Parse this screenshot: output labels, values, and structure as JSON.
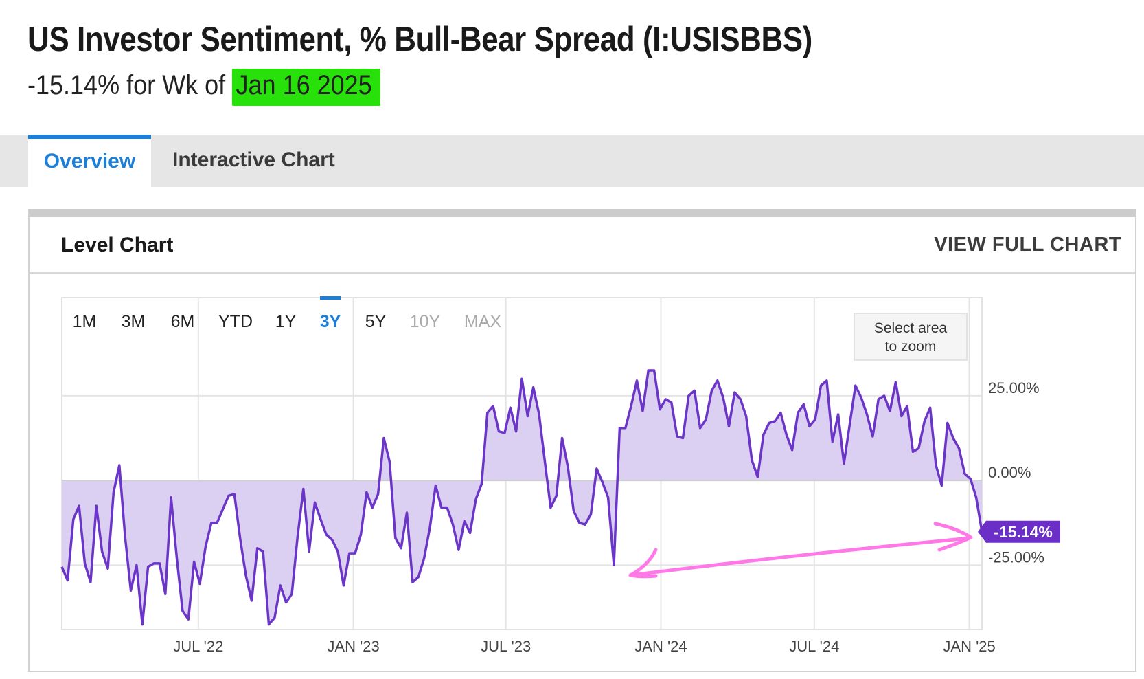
{
  "header": {
    "title": "US Investor Sentiment, % Bull-Bear Spread (I:USISBBS)",
    "subtitle_value": "-15.14% for Wk of",
    "subtitle_date": "Jan 16 2025",
    "highlight_color": "#28e00a"
  },
  "tabs": [
    {
      "label": "Overview",
      "active": true
    },
    {
      "label": "Interactive Chart",
      "active": false
    }
  ],
  "panel": {
    "title": "Level Chart",
    "full_chart_link": "VIEW FULL CHART"
  },
  "ranges": [
    {
      "label": "1M",
      "state": "normal"
    },
    {
      "label": "3M",
      "state": "normal"
    },
    {
      "label": "6M",
      "state": "normal"
    },
    {
      "label": "YTD",
      "state": "normal"
    },
    {
      "label": "1Y",
      "state": "normal"
    },
    {
      "label": "3Y",
      "state": "active"
    },
    {
      "label": "5Y",
      "state": "normal"
    },
    {
      "label": "10Y",
      "state": "disabled"
    },
    {
      "label": "MAX",
      "state": "disabled"
    }
  ],
  "zoom_hint": [
    "Select area",
    "to zoom"
  ],
  "chart_data": {
    "type": "area",
    "x_start": "2022-01-20",
    "x_end": "2025-01-16",
    "x_ticks": [
      {
        "label": "JUL '22",
        "date": "2022-07-01"
      },
      {
        "label": "JAN '23",
        "date": "2023-01-01"
      },
      {
        "label": "JUL '23",
        "date": "2023-07-01"
      },
      {
        "label": "JAN '24",
        "date": "2024-01-01"
      },
      {
        "label": "JUL '24",
        "date": "2024-07-01"
      },
      {
        "label": "JAN '25",
        "date": "2025-01-01"
      }
    ],
    "y_ticks": [
      {
        "label": "25.00%",
        "value": 25
      },
      {
        "label": "0.00%",
        "value": 0
      },
      {
        "label": "-25.00%",
        "value": -25
      }
    ],
    "ylim": [
      -44,
      54
    ],
    "grid": true,
    "line_color": "#6b35c8",
    "fill_color": "#d9cdf0",
    "last_value_label": "-15.14%",
    "weekly_values": [
      -25.5,
      -29.5,
      -11.5,
      -7.5,
      -24.5,
      -30.0,
      -7.5,
      -21.0,
      -26.0,
      -3.5,
      4.5,
      -16.5,
      -32.5,
      -25.0,
      -42.5,
      -25.5,
      -24.5,
      -24.5,
      -33.5,
      -5.0,
      -23.0,
      -38.5,
      -41.0,
      -24.0,
      -30.5,
      -19.5,
      -12.5,
      -12.5,
      -8.5,
      -4.5,
      -4.0,
      -17.0,
      -28.0,
      -35.5,
      -20.0,
      -21.0,
      -42.5,
      -40.5,
      -31.0,
      -36.0,
      -33.5,
      -16.5,
      -2.5,
      -21.0,
      -6.5,
      -11.5,
      -16.0,
      -17.5,
      -21.0,
      -31.0,
      -21.5,
      -21.5,
      -16.0,
      -3.5,
      -8.0,
      -4.0,
      12.5,
      5.5,
      -17.0,
      -20.0,
      -9.5,
      -30.0,
      -28.5,
      -23.0,
      -14.0,
      -1.5,
      -8.0,
      -8.0,
      -13.0,
      -20.5,
      -12.0,
      -15.5,
      -5.5,
      -1.0,
      20.0,
      22.0,
      14.5,
      14.0,
      21.5,
      14.5,
      30.0,
      19.0,
      27.5,
      19.5,
      5.5,
      -8.0,
      -4.5,
      12.5,
      4.0,
      -9.0,
      -12.5,
      -13.0,
      -10.0,
      3.5,
      -0.5,
      -5.0,
      -25.0,
      15.5,
      15.5,
      22.0,
      29.5,
      20.5,
      32.5,
      32.5,
      21.0,
      24.0,
      23.0,
      13.0,
      12.5,
      25.0,
      26.5,
      15.5,
      18.0,
      26.5,
      29.5,
      24.5,
      16.0,
      26.0,
      24.0,
      19.0,
      6.0,
      1.0,
      13.5,
      17.0,
      17.5,
      20.0,
      13.5,
      9.0,
      20.0,
      22.5,
      16.0,
      18.0,
      28.0,
      29.5,
      11.5,
      19.5,
      5.0,
      16.5,
      28.0,
      24.5,
      19.5,
      13.0,
      24.0,
      25.0,
      20.5,
      29.0,
      19.0,
      22.0,
      8.5,
      9.5,
      17.5,
      21.5,
      4.5,
      -1.5,
      17.0,
      12.5,
      9.5,
      2.0,
      0.5,
      -5.0,
      -15.14
    ]
  },
  "annotation": {
    "type": "double-headed arrow",
    "color": "#ff78e8"
  }
}
